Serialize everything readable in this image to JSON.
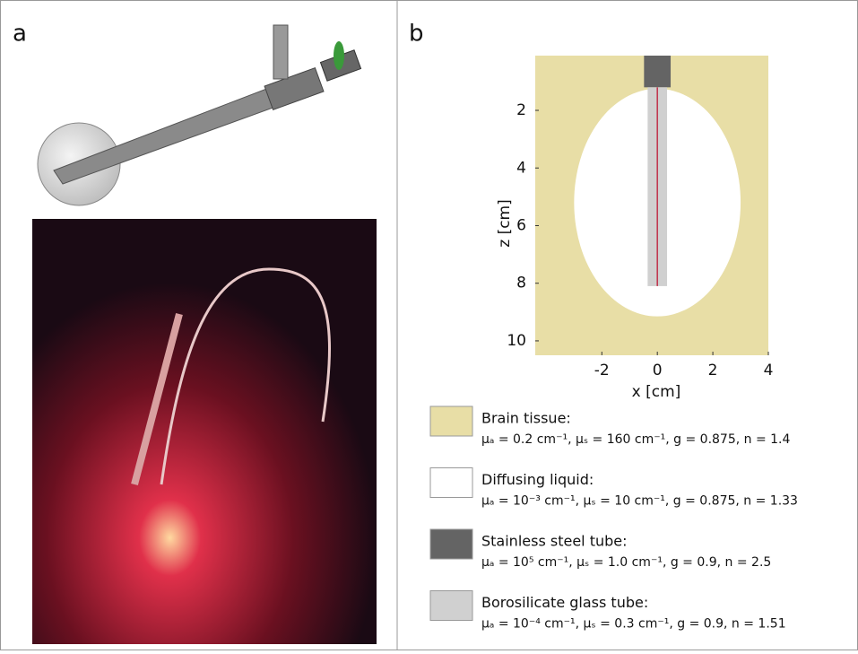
{
  "panels": [
    "a",
    "b"
  ],
  "chart_data": {
    "type": "geometry",
    "xlabel": "x [cm]",
    "ylabel": "z [cm]",
    "xlim": [
      -4.4,
      4
    ],
    "ylim": [
      0.1,
      10.5
    ],
    "xticks": [
      -2,
      0,
      2,
      4
    ],
    "yticks": [
      2,
      4,
      6,
      8,
      10
    ],
    "y_inverted": true,
    "series": [
      {
        "name": "Brain tissue:",
        "properties": "μₐ = 0.2 cm⁻¹, μₛ = 160 cm⁻¹, g = 0.875, n = 1.4",
        "color": "#e8dea6",
        "shape": "rect",
        "x": [
          -4.4,
          4
        ],
        "z": [
          0.1,
          10.5
        ]
      },
      {
        "name": "Diffusing liquid:",
        "properties": "μₐ = 10⁻³ cm⁻¹, μₛ = 10 cm⁻¹, g = 0.875, n = 1.33",
        "color": "#ffffff",
        "shape": "ellipse",
        "center": [
          0,
          5.2
        ],
        "radii": [
          3.0,
          3.95
        ]
      },
      {
        "name": "Stainless steel tube:",
        "properties": "μₐ = 10⁵ cm⁻¹, μₛ = 1.0 cm⁻¹, g = 0.9, n = 2.5",
        "color": "#646464",
        "shape": "rect",
        "x": [
          -0.48,
          0.48
        ],
        "z": [
          0.1,
          1.2
        ]
      },
      {
        "name": "Borosilicate glass tube:",
        "properties": "μₐ = 10⁻⁴ cm⁻¹, μₛ = 0.3 cm⁻¹, g = 0.9, n = 1.51",
        "color": "#d0d0d0",
        "shape": "rect",
        "x": [
          -0.35,
          0.35
        ],
        "z": [
          1.2,
          8.1
        ]
      }
    ],
    "fiber": {
      "color": "#c0304a",
      "x": 0,
      "z": [
        1.2,
        8.1
      ]
    }
  }
}
